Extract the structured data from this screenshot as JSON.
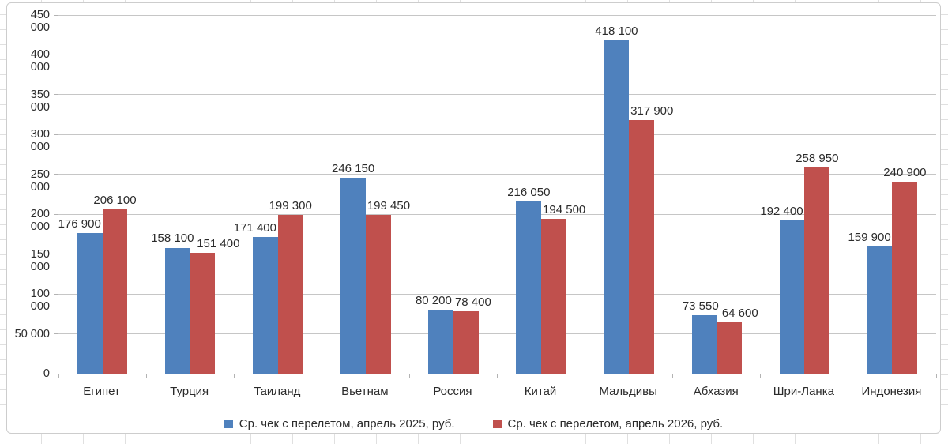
{
  "chart_data": {
    "type": "bar",
    "title": "",
    "categories": [
      "Египет",
      "Турция",
      "Таиланд",
      "Вьетнам",
      "Россия",
      "Китай",
      "Мальдивы",
      "Абхазия",
      "Шри-Ланка",
      "Индонезия"
    ],
    "series": [
      {
        "name": "Ср. чек с перелетом, апрель 2025, руб.",
        "color": "#4F81BD",
        "values": [
          176900,
          158100,
          171400,
          246150,
          80200,
          216050,
          418100,
          73550,
          192400,
          159900
        ],
        "labels": [
          "176 900",
          "158 100",
          "171 400",
          "246 150",
          "80 200",
          "216 050",
          "418 100",
          "73 550",
          "192 400",
          "159 900"
        ]
      },
      {
        "name": "Ср. чек с перелетом, апрель 2026, руб.",
        "color": "#C0504D",
        "values": [
          206100,
          151400,
          199300,
          199450,
          78400,
          194500,
          317900,
          64600,
          258950,
          240900
        ],
        "labels": [
          "206 100",
          "151 400",
          "199 300",
          "199 450",
          "78 400",
          "194 500",
          "317 900",
          "64 600",
          "258 950",
          "240 900"
        ]
      }
    ],
    "ylim": [
      0,
      450000
    ],
    "ytick_step": 50000,
    "ytick_labels": [
      "0",
      "50 000",
      "100 000",
      "150 000",
      "200 000",
      "250 000",
      "300 000",
      "350 000",
      "400 000",
      "450 000"
    ],
    "grid": true,
    "legend_position": "bottom"
  },
  "colors": {
    "series_2025": "#4F81BD",
    "series_2026": "#C0504D",
    "gridline": "#c6c6c6",
    "axis": "#b3b3b3"
  }
}
